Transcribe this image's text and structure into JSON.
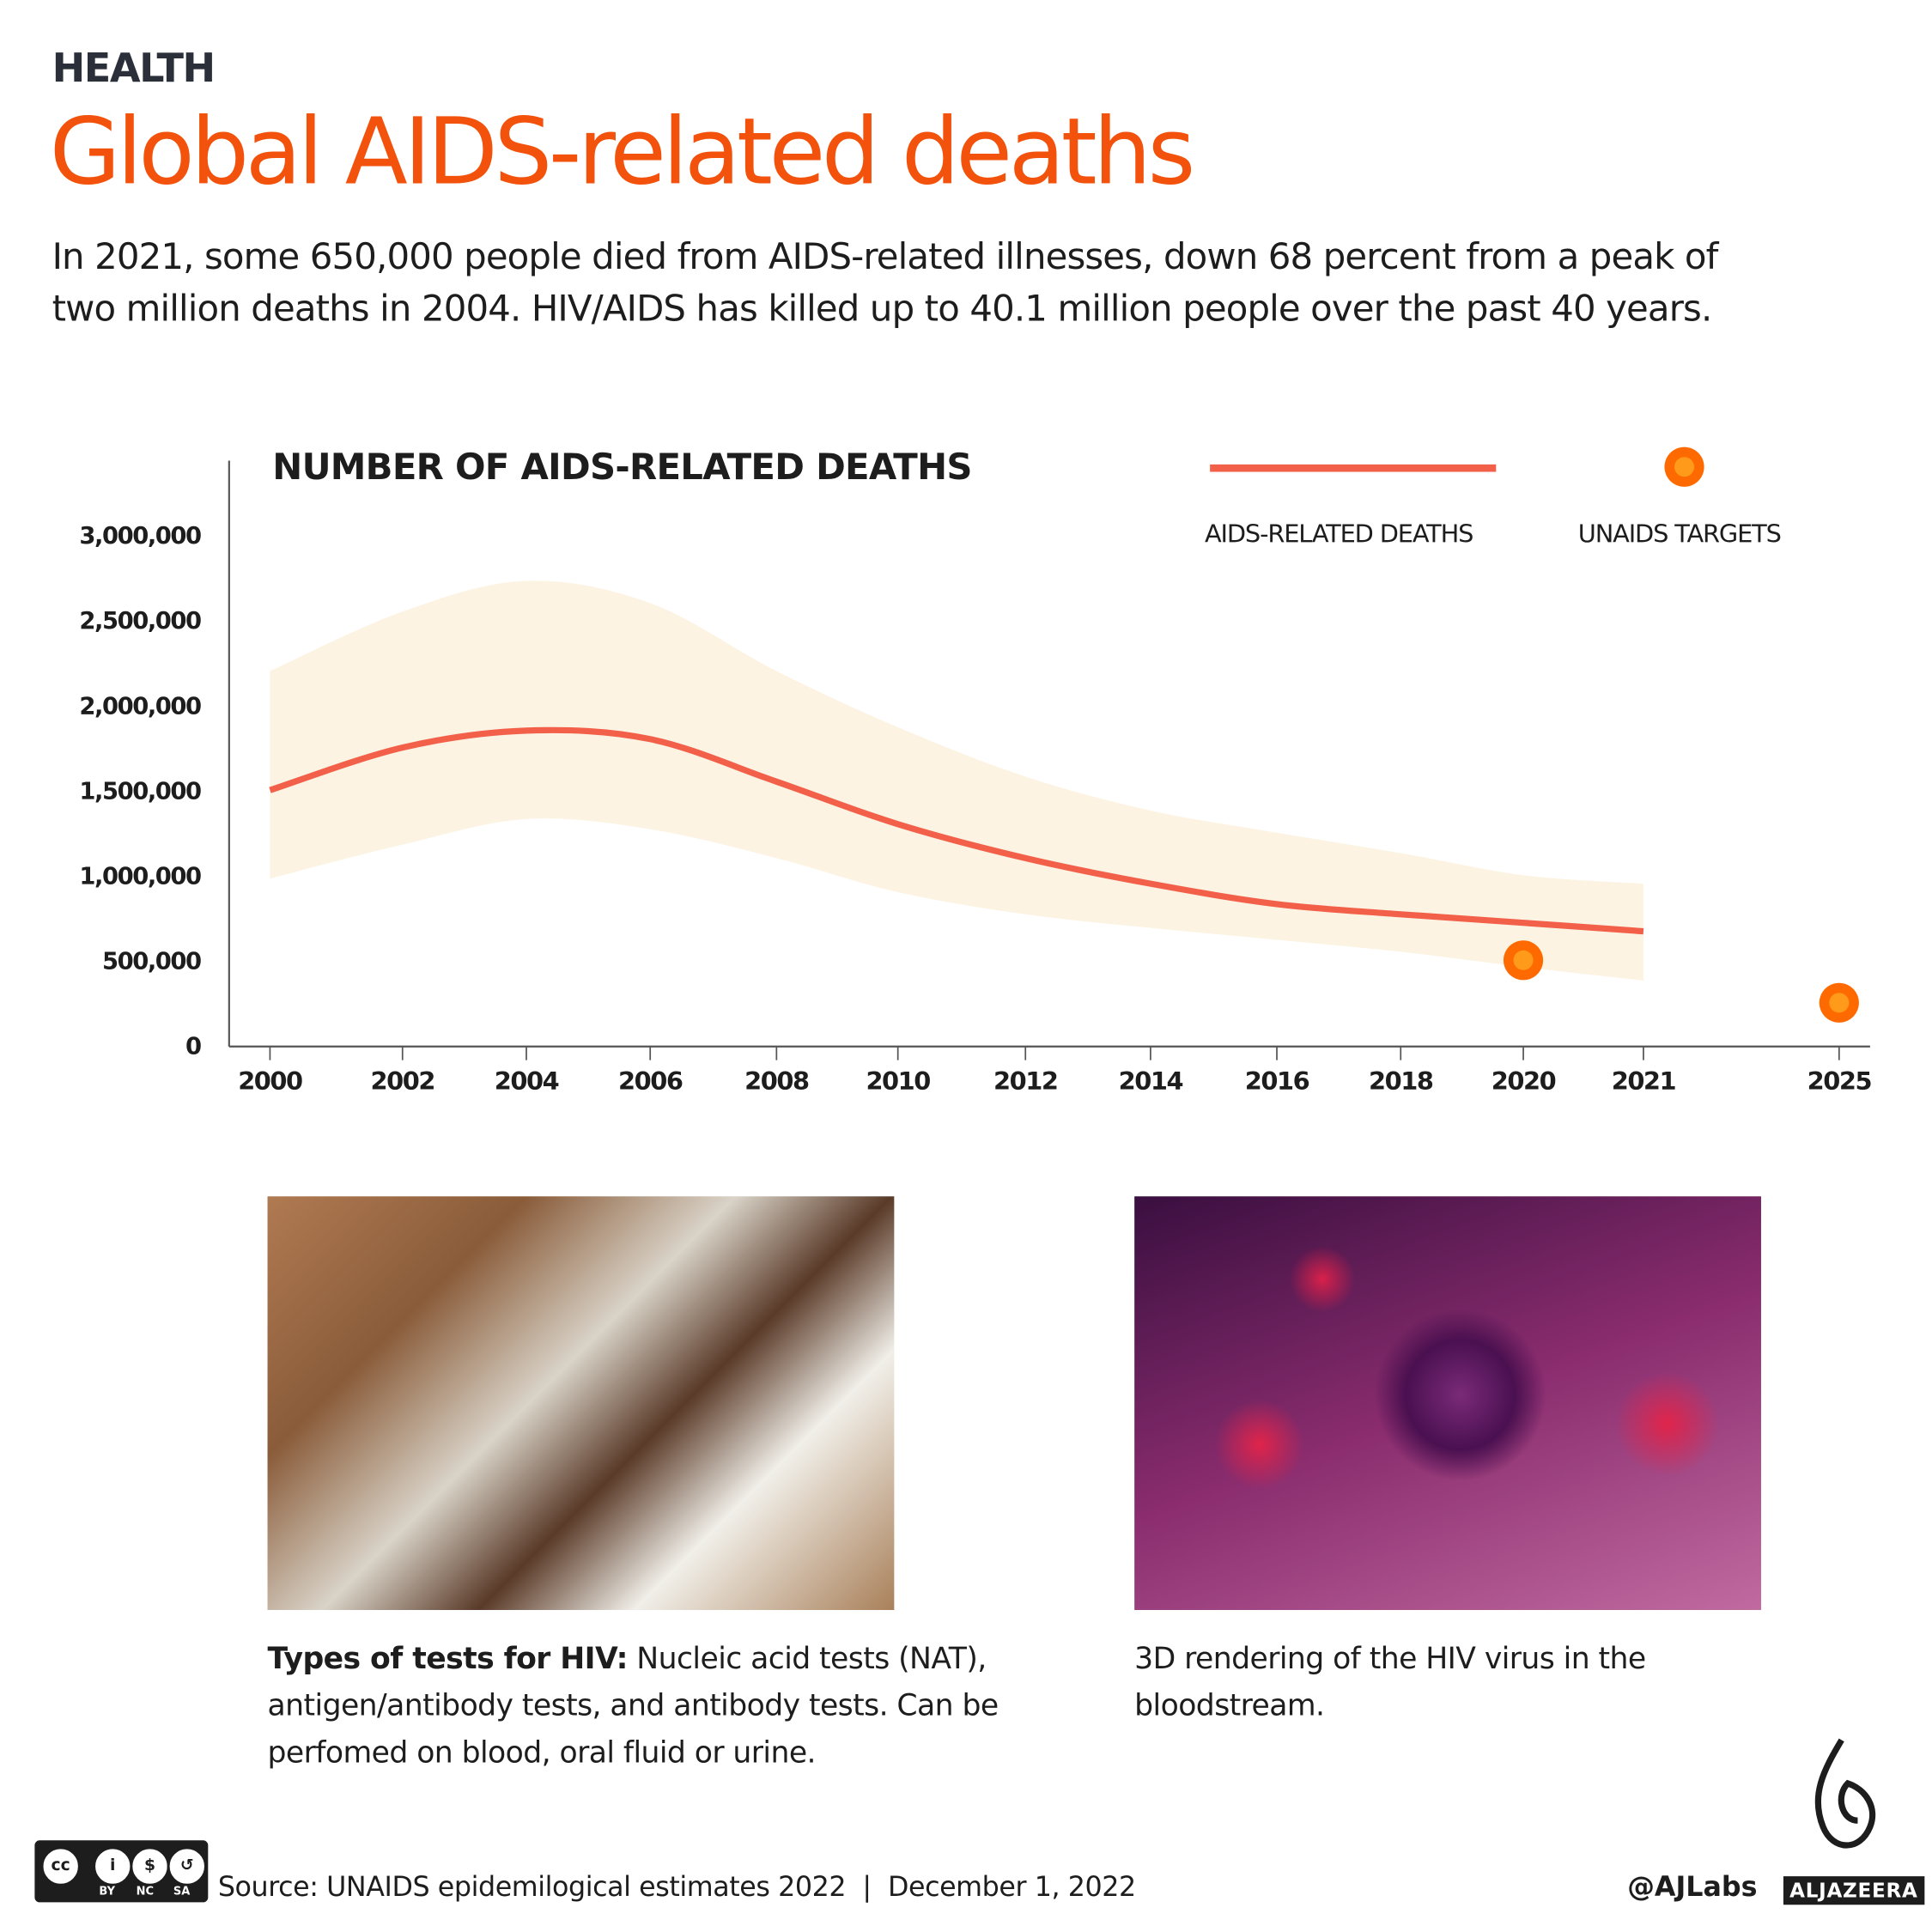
{
  "header": {
    "kicker": "HEALTH",
    "title": "Global AIDS-related deaths",
    "intro": "In 2021, some 650,000 people died from AIDS-related illnesses, down 68 percent from a peak of two million deaths in 2004. HIV/AIDS has killed up to 40.1 million people over the past 40 years."
  },
  "chart_data": {
    "type": "line",
    "title": "NUMBER OF AIDS-RELATED DEATHS",
    "categories": [
      "2000",
      "2002",
      "2004",
      "2006",
      "2008",
      "2010",
      "2012",
      "2014",
      "2016",
      "2018",
      "2020",
      "2021",
      "2025"
    ],
    "yticks": [
      0,
      500000,
      1000000,
      1500000,
      2000000,
      2500000,
      3000000
    ],
    "ytick_labels": [
      "0",
      "500,000",
      "1,000,000",
      "1,500,000",
      "2,000,000",
      "2,500,000",
      "3,000,000"
    ],
    "ylim": [
      0,
      3000000
    ],
    "grid": false,
    "legend_placement": "top-right",
    "series": [
      {
        "name": "AIDS-RELATED DEATHS",
        "type": "line",
        "color": "#f2604a",
        "x": [
          "2000",
          "2002",
          "2004",
          "2006",
          "2008",
          "2010",
          "2012",
          "2014",
          "2016",
          "2018",
          "2020",
          "2021"
        ],
        "values": [
          1500000,
          1750000,
          1850000,
          1800000,
          1550000,
          1300000,
          1100000,
          950000,
          830000,
          770000,
          720000,
          670000
        ],
        "upper": [
          2200000,
          2550000,
          2730000,
          2600000,
          2200000,
          1870000,
          1580000,
          1380000,
          1250000,
          1130000,
          1000000,
          950000
        ],
        "lower": [
          980000,
          1180000,
          1330000,
          1270000,
          1100000,
          900000,
          770000,
          690000,
          620000,
          550000,
          460000,
          380000
        ],
        "band_color": "#fdf3e3"
      },
      {
        "name": "UNAIDS TARGETS",
        "type": "scatter",
        "color": "#ff6a00",
        "inner_color": "#ff9a1a",
        "x": [
          "2020",
          "2025"
        ],
        "values": [
          500000,
          250000
        ]
      }
    ]
  },
  "captions": {
    "photo1_bold": "Types of tests for HIV:",
    "photo1_text": " Nucleic acid tests (NAT), antigen/antibody  tests, and antibody tests. Can be perfomed on blood, oral fluid or urine.",
    "photo2_text": "3D rendering of the HIV virus in the bloodstream."
  },
  "footer": {
    "license_icons": [
      "CC",
      "BY",
      "NC",
      "SA"
    ],
    "source": "Source: UNAIDS epidemilogical estimates 2022  |  December 1, 2022",
    "handle": "@AJLabs",
    "brand": "ALJAZEERA"
  }
}
